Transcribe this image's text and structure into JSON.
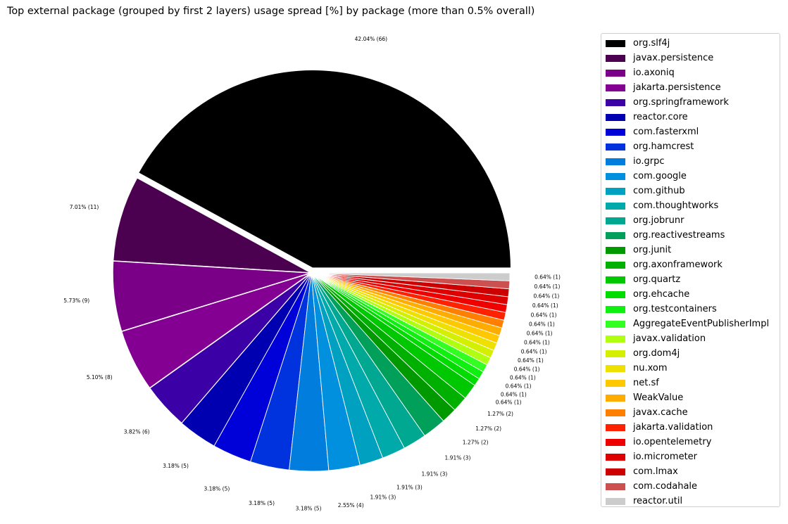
{
  "chart_data": {
    "type": "pie",
    "title": "Top external package (grouped by first 2 layers) usage spread [%] by package (more than 0.5% overall)",
    "slices": [
      {
        "name": "org.slf4j",
        "value": 42.04,
        "label": "42.04% (66)",
        "color": "#000000"
      },
      {
        "name": "javax.persistence",
        "value": 7.01,
        "label": "7.01% (11)",
        "color": "#4b0050"
      },
      {
        "name": "io.axoniq",
        "value": 5.73,
        "label": "5.73% (9)",
        "color": "#7a0088"
      },
      {
        "name": "jakarta.persistence",
        "value": 5.1,
        "label": "5.10% (8)",
        "color": "#840093"
      },
      {
        "name": "org.springframework",
        "value": 3.82,
        "label": "3.82% (6)",
        "color": "#3b00a6"
      },
      {
        "name": "reactor.core",
        "value": 3.18,
        "label": "3.18% (5)",
        "color": "#0000b0"
      },
      {
        "name": "com.fasterxml",
        "value": 3.18,
        "label": "3.18% (5)",
        "color": "#0000d8"
      },
      {
        "name": "org.hamcrest",
        "value": 3.18,
        "label": "3.18% (5)",
        "color": "#0033dd"
      },
      {
        "name": "io.grpc",
        "value": 3.18,
        "label": "3.18% (5)",
        "color": "#007ddd"
      },
      {
        "name": "com.google",
        "value": 2.55,
        "label": "2.55% (4)",
        "color": "#0090dd"
      },
      {
        "name": "com.github",
        "value": 1.91,
        "label": "1.91% (3)",
        "color": "#00a0c0"
      },
      {
        "name": "com.thoughtworks",
        "value": 1.91,
        "label": "1.91% (3)",
        "color": "#00aaaa"
      },
      {
        "name": "org.jobrunr",
        "value": 1.91,
        "label": "1.91% (3)",
        "color": "#00a892"
      },
      {
        "name": "org.reactivestreams",
        "value": 1.91,
        "label": "1.91% (3)",
        "color": "#00a05a"
      },
      {
        "name": "org.junit",
        "value": 1.27,
        "label": "1.27% (2)",
        "color": "#009a00"
      },
      {
        "name": "org.axonframework",
        "value": 1.27,
        "label": "1.27% (2)",
        "color": "#00b000"
      },
      {
        "name": "org.quartz",
        "value": 1.27,
        "label": "1.27% (2)",
        "color": "#00c800"
      },
      {
        "name": "org.ehcache",
        "value": 0.64,
        "label": "0.64% (1)",
        "color": "#00dc00"
      },
      {
        "name": "org.testcontainers",
        "value": 0.64,
        "label": "0.64% (1)",
        "color": "#10f010"
      },
      {
        "name": "AggregateEventPublisherImpl",
        "value": 0.64,
        "label": "0.64% (1)",
        "color": "#33ff22"
      },
      {
        "name": "javax.validation",
        "value": 0.64,
        "label": "0.64% (1)",
        "color": "#b0ff10"
      },
      {
        "name": "org.dom4j",
        "value": 0.64,
        "label": "0.64% (1)",
        "color": "#d4f000"
      },
      {
        "name": "nu.xom",
        "value": 0.64,
        "label": "0.64% (1)",
        "color": "#eee000"
      },
      {
        "name": "net.sf",
        "value": 0.64,
        "label": "0.64% (1)",
        "color": "#ffc800"
      },
      {
        "name": "WeakValue",
        "value": 0.64,
        "label": "0.64% (1)",
        "color": "#ffac00"
      },
      {
        "name": "javax.cache",
        "value": 0.64,
        "label": "0.64% (1)",
        "color": "#ff8000"
      },
      {
        "name": "jakarta.validation",
        "value": 0.64,
        "label": "0.64% (1)",
        "color": "#ff2200"
      },
      {
        "name": "io.opentelemetry",
        "value": 0.64,
        "label": "0.64% (1)",
        "color": "#ee0000"
      },
      {
        "name": "io.micrometer",
        "value": 0.64,
        "label": "0.64% (1)",
        "color": "#dd0000"
      },
      {
        "name": "com.lmax",
        "value": 0.64,
        "label": "0.64% (1)",
        "color": "#cc0000"
      },
      {
        "name": "com.codahale",
        "value": 0.64,
        "label": "0.64% (1)",
        "color": "#cc5050"
      },
      {
        "name": "reactor.util",
        "value": 0.64,
        "label": "0.64% (1)",
        "color": "#cccccc"
      }
    ],
    "start_angle": "3 o'clock",
    "direction": "counterclockwise",
    "exploded": [
      "org.slf4j"
    ],
    "legend_position": "right"
  }
}
